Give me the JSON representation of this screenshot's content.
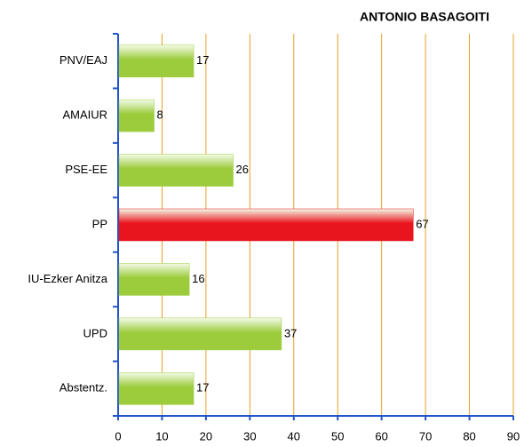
{
  "chart_data": {
    "type": "bar",
    "orientation": "horizontal",
    "title": "ANTONIO BASAGOITI",
    "categories": [
      "PNV/EAJ",
      "AMAIUR",
      "PSE-EE",
      "PP",
      "IU-Ezker Anitza",
      "UPD",
      "Abstentz."
    ],
    "values": [
      17,
      8,
      26,
      67,
      16,
      37,
      17
    ],
    "colors": [
      "#9ccc3c",
      "#9ccc3c",
      "#9ccc3c",
      "#e8141e",
      "#9ccc3c",
      "#9ccc3c",
      "#9ccc3c"
    ],
    "xlim": [
      0,
      90
    ],
    "xticks": [
      0,
      10,
      20,
      30,
      40,
      50,
      60,
      70,
      80,
      90
    ],
    "grid": true,
    "grid_color": "#e8a020",
    "axis_color": "#2255cc"
  }
}
